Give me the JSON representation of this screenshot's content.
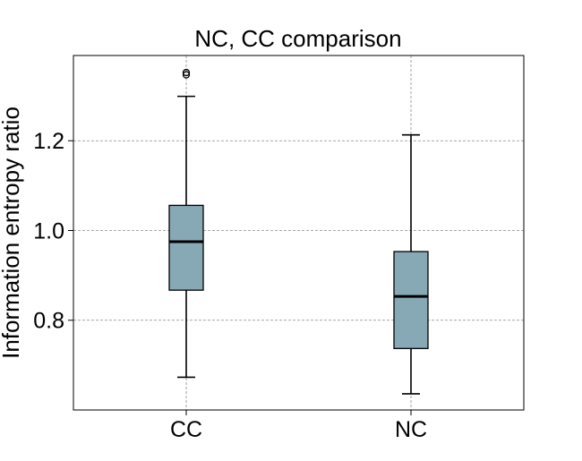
{
  "chart_data": {
    "type": "box",
    "title": "NC, CC comparison",
    "xlabel": "",
    "ylabel": "Information entropy ratio",
    "categories": [
      "CC",
      "NC"
    ],
    "ylim": [
      0.6,
      1.39
    ],
    "yticks": [
      0.8,
      1.0,
      1.2
    ],
    "ytick_labels": [
      "0.8",
      "1.0",
      "1.2"
    ],
    "grid": true,
    "boxes": [
      {
        "category": "CC",
        "whisker_low": 0.673,
        "q1": 0.867,
        "median": 0.975,
        "q3": 1.056,
        "whisker_high": 1.299,
        "outliers": [
          1.347,
          1.352
        ]
      },
      {
        "category": "NC",
        "whisker_low": 0.636,
        "q1": 0.737,
        "median": 0.853,
        "q3": 0.953,
        "whisker_high": 1.213,
        "outliers": []
      }
    ],
    "colors": {
      "box_fill": "#87a9b6",
      "median": "#000000",
      "grid": "#8a8a8a"
    }
  }
}
